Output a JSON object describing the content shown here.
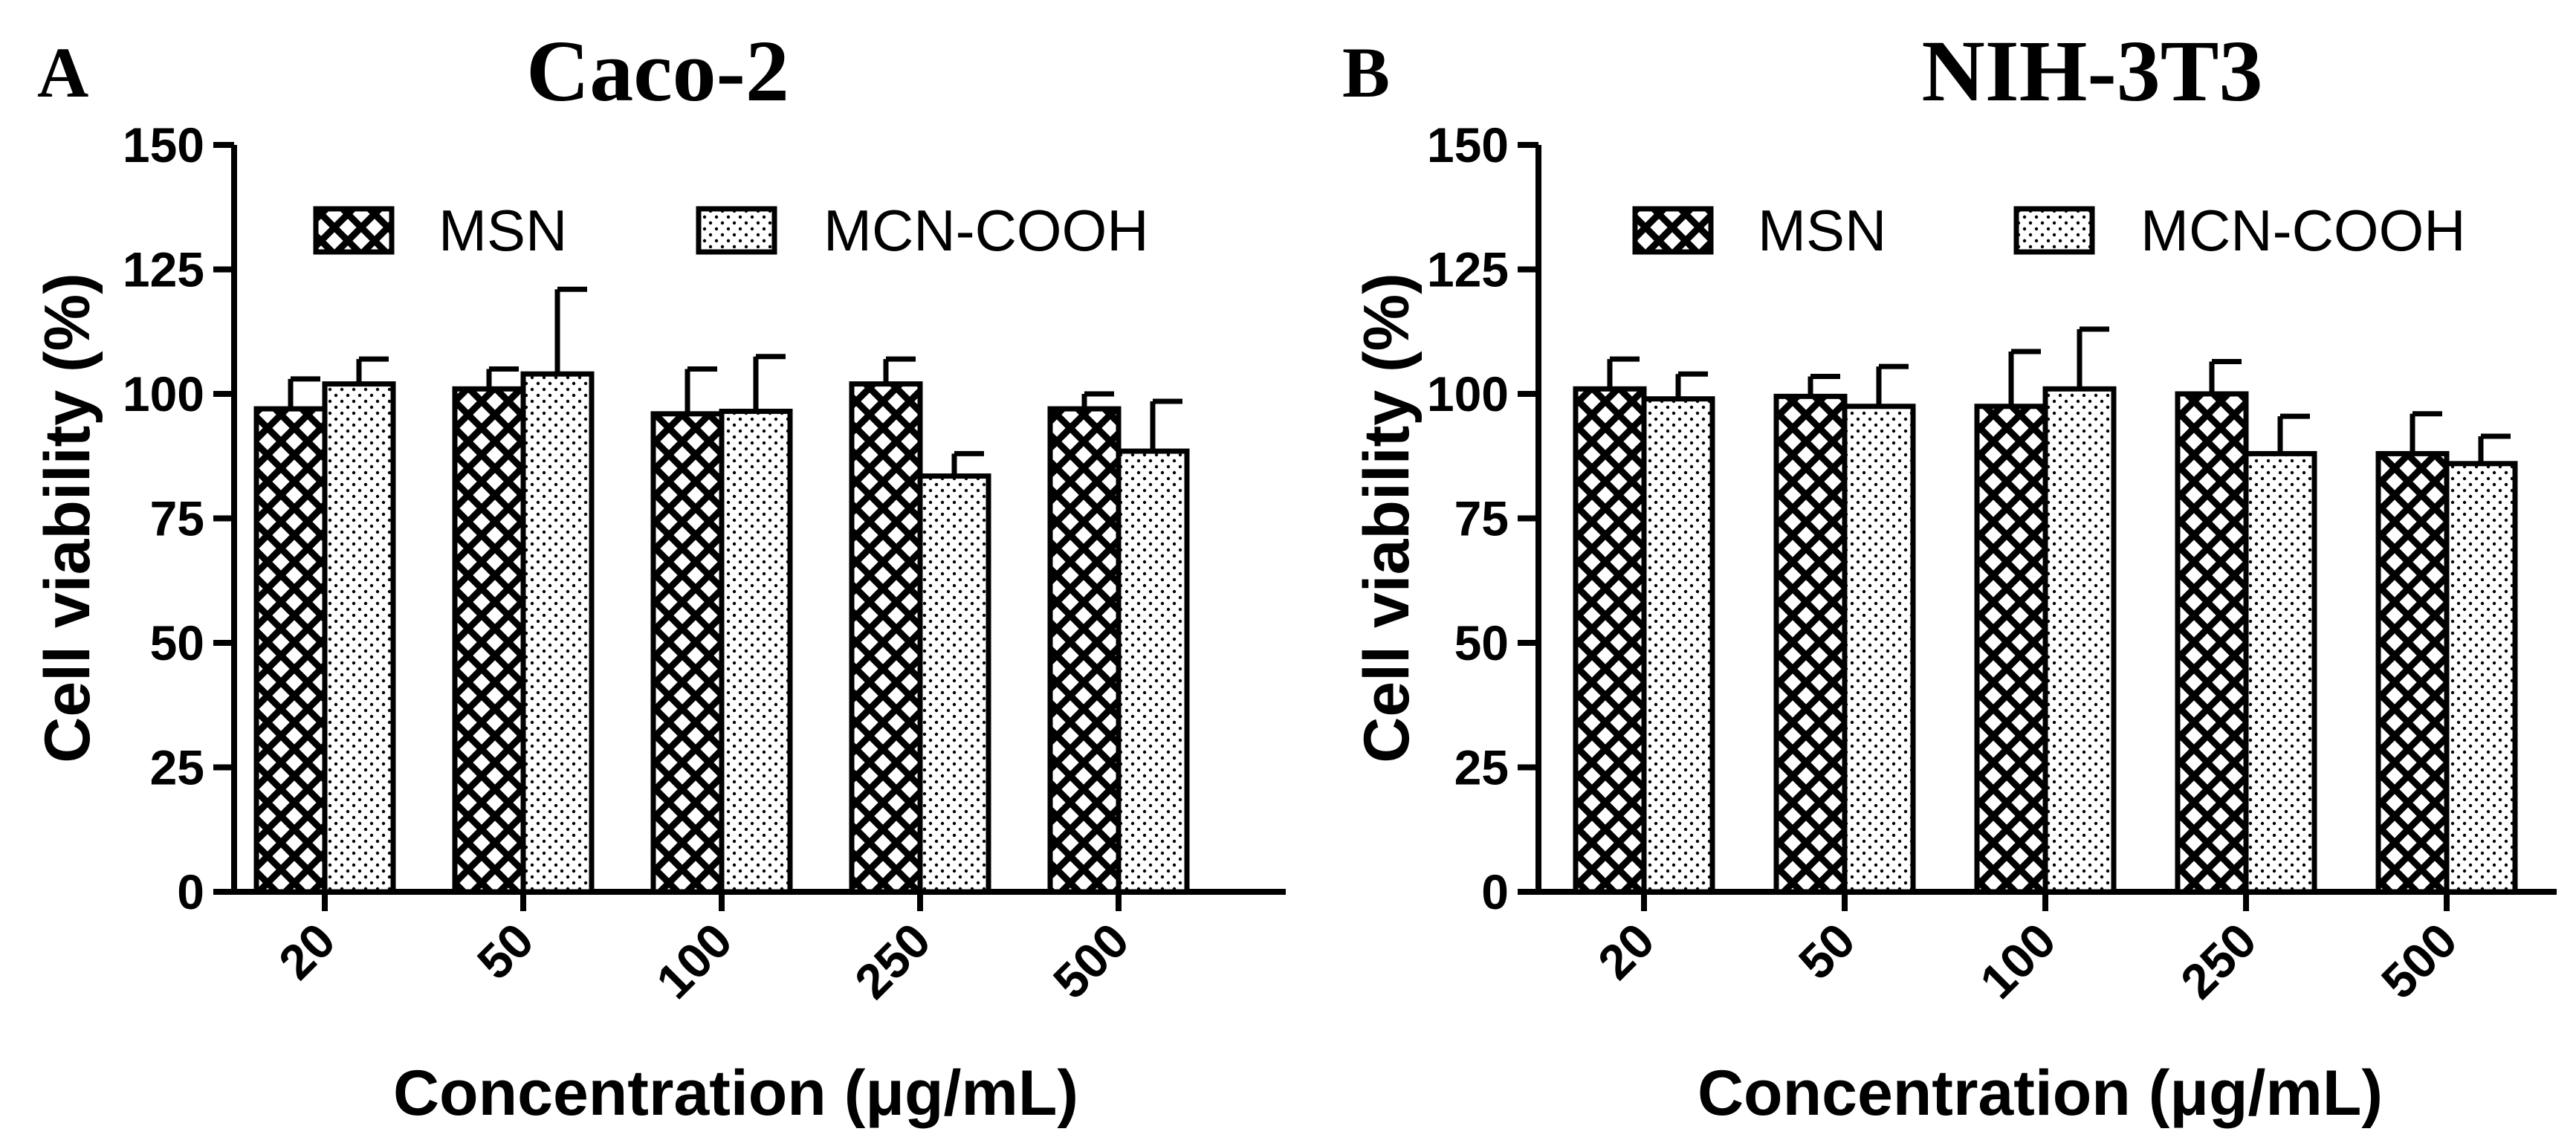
{
  "chart_data": [
    {
      "panel": "A",
      "type": "bar",
      "title": "Caco-2",
      "xlabel": "Concentration (μg/mL)",
      "ylabel": "Cell viability (%)",
      "ylim": [
        0,
        150
      ],
      "yticks": [
        0,
        25,
        50,
        75,
        100,
        125,
        150
      ],
      "categories": [
        "20",
        "50",
        "100",
        "250",
        "500"
      ],
      "legend_position": "top",
      "series": [
        {
          "name": "MSN",
          "pattern": "crosshatch",
          "values": [
            97,
            101,
            96,
            102,
            97
          ],
          "errors": [
            6,
            4,
            9,
            5,
            3
          ]
        },
        {
          "name": "MCN-COOH",
          "pattern": "dots",
          "values": [
            102,
            104,
            96.5,
            83.5,
            88.5
          ],
          "errors": [
            5,
            17,
            11,
            4.5,
            10
          ]
        }
      ]
    },
    {
      "panel": "B",
      "type": "bar",
      "title": "NIH-3T3",
      "xlabel": "Concentration (μg/mL)",
      "ylabel": "Cell viability (%)",
      "ylim": [
        0,
        150
      ],
      "yticks": [
        0,
        25,
        50,
        75,
        100,
        125,
        150
      ],
      "categories": [
        "20",
        "50",
        "100",
        "250",
        "500"
      ],
      "legend_position": "top",
      "series": [
        {
          "name": "MSN",
          "pattern": "crosshatch",
          "values": [
            101,
            99.5,
            97.5,
            100,
            88
          ],
          "errors": [
            6,
            4,
            11,
            6.5,
            8
          ]
        },
        {
          "name": "MCN-COOH",
          "pattern": "dots",
          "values": [
            99,
            97.5,
            101,
            88,
            86
          ],
          "errors": [
            5,
            8,
            12,
            7.5,
            5.5
          ]
        }
      ]
    }
  ]
}
